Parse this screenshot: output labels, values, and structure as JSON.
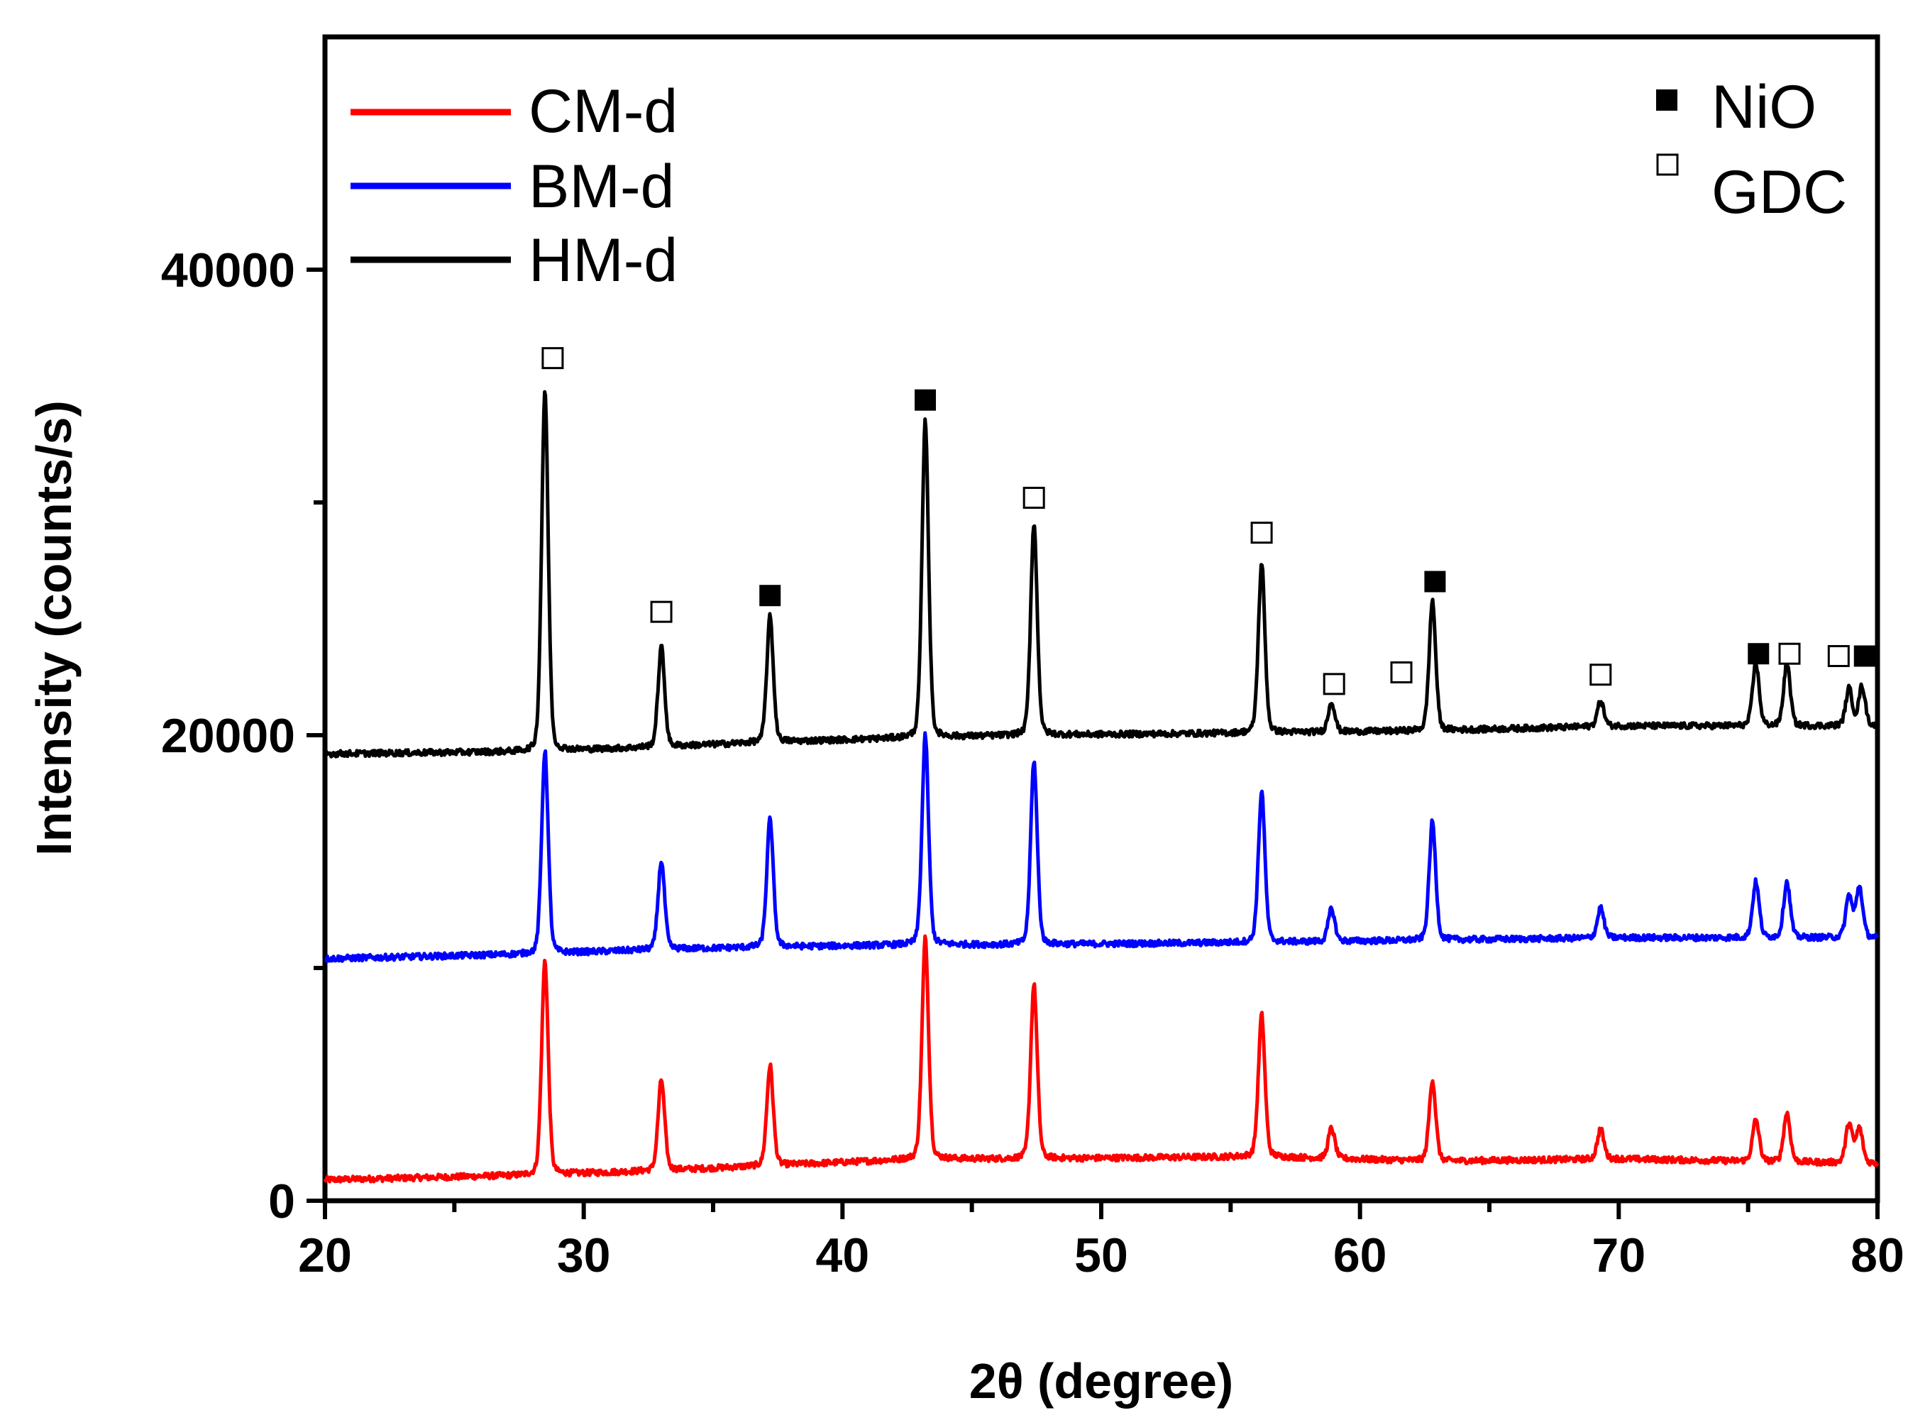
{
  "chart_data": {
    "type": "line",
    "title": "",
    "xlabel": "2θ (degree)",
    "ylabel": "Intensity (counts/s)",
    "xlim": [
      20,
      80
    ],
    "ylim": [
      0,
      50000
    ],
    "x_ticks": [
      20,
      30,
      40,
      50,
      60,
      70,
      80
    ],
    "x_tick_labels": [
      "20",
      "30",
      "40",
      "50",
      "60",
      "70",
      "80"
    ],
    "y_ticks": [
      0,
      20000,
      40000
    ],
    "y_tick_labels": [
      "0",
      "20000",
      "40000"
    ],
    "legend": {
      "position": "top-left",
      "entries": [
        {
          "name": "CM-d",
          "color": "#ff0000"
        },
        {
          "name": "BM-d",
          "color": "#0000ff"
        },
        {
          "name": "HM-d",
          "color": "#000000"
        }
      ]
    },
    "phase_legend": {
      "position": "top-right",
      "entries": [
        {
          "name": "NiO",
          "marker": "filled-square"
        },
        {
          "name": "GDC",
          "marker": "open-square"
        }
      ]
    },
    "series": [
      {
        "name": "CM-d",
        "color": "#ff0000",
        "baseline": [
          [
            20,
            900
          ],
          [
            28,
            1100
          ],
          [
            33,
            1300
          ],
          [
            37,
            1500
          ],
          [
            43,
            1800
          ],
          [
            47,
            1800
          ],
          [
            56,
            1900
          ],
          [
            63,
            1700
          ],
          [
            70,
            1800
          ],
          [
            80,
            1600
          ]
        ],
        "peaks": [
          [
            28.5,
            9200
          ],
          [
            33.0,
            3900
          ],
          [
            37.2,
            4300
          ],
          [
            43.2,
            9500
          ],
          [
            47.4,
            7500
          ],
          [
            56.2,
            6100
          ],
          [
            58.9,
            1300
          ],
          [
            62.8,
            3500
          ],
          [
            69.3,
            1300
          ],
          [
            75.3,
            1800
          ],
          [
            76.5,
            2100
          ],
          [
            78.9,
            1700
          ],
          [
            79.3,
            1500
          ]
        ]
      },
      {
        "name": "BM-d",
        "color": "#0000ff",
        "baseline": [
          [
            20,
            10400
          ],
          [
            28,
            10600
          ],
          [
            33,
            10800
          ],
          [
            37,
            10900
          ],
          [
            43,
            11000
          ],
          [
            47,
            11000
          ],
          [
            56,
            11100
          ],
          [
            63,
            11200
          ],
          [
            70,
            11300
          ],
          [
            80,
            11300
          ]
        ],
        "peaks": [
          [
            28.5,
            8700
          ],
          [
            33.0,
            3800
          ],
          [
            37.2,
            5500
          ],
          [
            43.2,
            9000
          ],
          [
            47.4,
            7900
          ],
          [
            56.2,
            6500
          ],
          [
            58.9,
            1400
          ],
          [
            62.8,
            5100
          ],
          [
            69.3,
            1300
          ],
          [
            75.3,
            2400
          ],
          [
            76.5,
            2400
          ],
          [
            78.9,
            1800
          ],
          [
            79.3,
            2200
          ]
        ]
      },
      {
        "name": "HM-d",
        "color": "#000000",
        "baseline": [
          [
            20,
            19200
          ],
          [
            28,
            19300
          ],
          [
            33,
            19500
          ],
          [
            37,
            19700
          ],
          [
            43,
            19900
          ],
          [
            47,
            20000
          ],
          [
            56,
            20100
          ],
          [
            63,
            20200
          ],
          [
            70,
            20400
          ],
          [
            80,
            20400
          ]
        ],
        "peaks": [
          [
            28.5,
            15500
          ],
          [
            33.0,
            4300
          ],
          [
            37.2,
            5400
          ],
          [
            43.2,
            13600
          ],
          [
            47.4,
            9100
          ],
          [
            56.2,
            7300
          ],
          [
            58.9,
            1300
          ],
          [
            62.8,
            5600
          ],
          [
            69.3,
            1100
          ],
          [
            75.3,
            2700
          ],
          [
            76.5,
            2700
          ],
          [
            78.9,
            1600
          ],
          [
            79.4,
            1700
          ]
        ]
      }
    ],
    "annotations": [
      {
        "x": 28.8,
        "y": 36200,
        "marker": "open-square",
        "phase": "GDC"
      },
      {
        "x": 33.0,
        "y": 25300,
        "marker": "open-square",
        "phase": "GDC"
      },
      {
        "x": 37.2,
        "y": 26000,
        "marker": "filled-square",
        "phase": "NiO"
      },
      {
        "x": 43.2,
        "y": 34400,
        "marker": "filled-square",
        "phase": "NiO"
      },
      {
        "x": 47.4,
        "y": 30200,
        "marker": "open-square",
        "phase": "GDC"
      },
      {
        "x": 56.2,
        "y": 28700,
        "marker": "open-square",
        "phase": "GDC"
      },
      {
        "x": 59.0,
        "y": 22200,
        "marker": "open-square",
        "phase": "GDC"
      },
      {
        "x": 61.6,
        "y": 22700,
        "marker": "open-square",
        "phase": "GDC"
      },
      {
        "x": 62.9,
        "y": 26600,
        "marker": "filled-square",
        "phase": "NiO"
      },
      {
        "x": 69.3,
        "y": 22600,
        "marker": "open-square",
        "phase": "GDC"
      },
      {
        "x": 75.4,
        "y": 23500,
        "marker": "filled-square",
        "phase": "NiO"
      },
      {
        "x": 76.6,
        "y": 23500,
        "marker": "open-square",
        "phase": "GDC"
      },
      {
        "x": 78.5,
        "y": 23400,
        "marker": "open-square",
        "phase": "GDC"
      },
      {
        "x": 79.5,
        "y": 23400,
        "marker": "filled-square",
        "phase": "NiO"
      }
    ]
  }
}
